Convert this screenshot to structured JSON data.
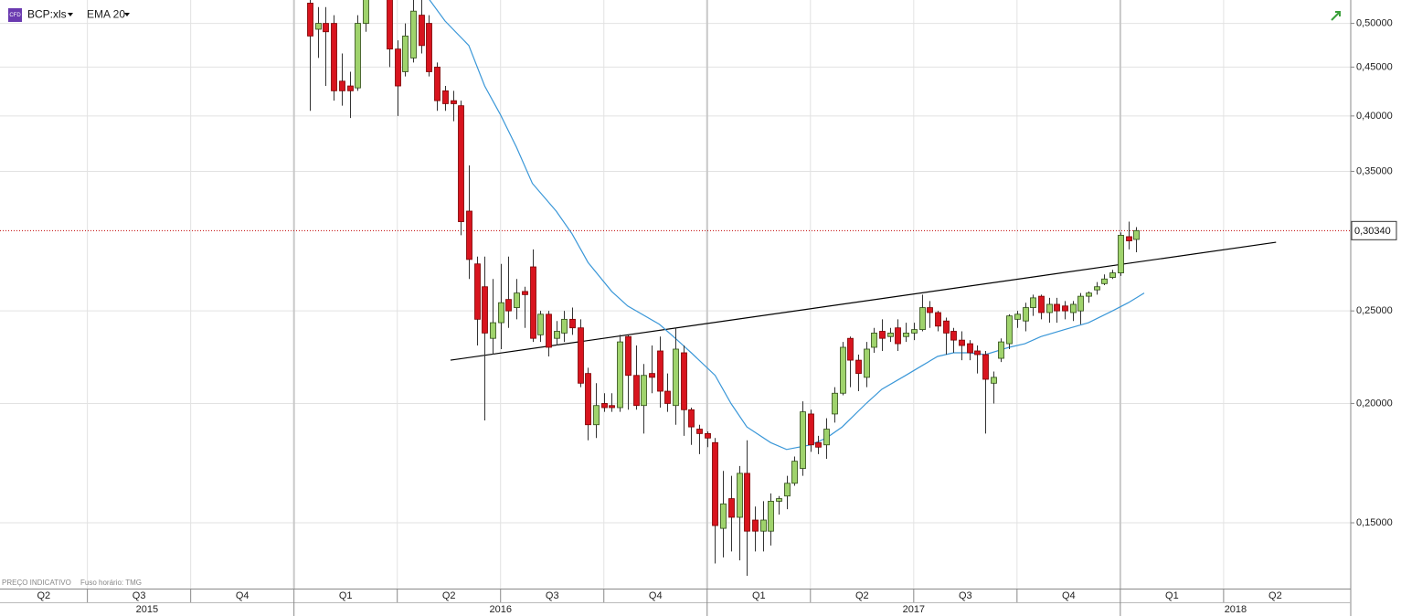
{
  "chart_data": {
    "type": "candlestick",
    "instrument_type": "CFD",
    "symbol": "BCP:xls",
    "footnote": "PREÇO INDICATIVO",
    "timezone_note": "Fuso horário: TMG",
    "log_scale": true,
    "grid": true,
    "up_color": "#9fd36c",
    "down_color": "#d8141e",
    "xlim": [
      0,
      170
    ],
    "ylim": [
      0.128,
      0.529
    ],
    "yticks": [
      {
        "value": 0.5,
        "label": "0,50000"
      },
      {
        "value": 0.45,
        "label": "0,45000"
      },
      {
        "value": 0.4,
        "label": "0,40000"
      },
      {
        "value": 0.35,
        "label": "0,35000"
      },
      {
        "value": 0.25,
        "label": "0,25000"
      },
      {
        "value": 0.2,
        "label": "0,20000"
      },
      {
        "value": 0.15,
        "label": "0,15000"
      }
    ],
    "quarters": [
      {
        "label": "Q2",
        "start": -2,
        "end": 11
      },
      {
        "label": "Q3",
        "start": 11,
        "end": 24
      },
      {
        "label": "Q4",
        "start": 24,
        "end": 37
      },
      {
        "label": "Q1",
        "start": 37,
        "end": 50
      },
      {
        "label": "Q2",
        "start": 50,
        "end": 63
      },
      {
        "label": "Q3",
        "start": 63,
        "end": 76
      },
      {
        "label": "Q4",
        "start": 76,
        "end": 89
      },
      {
        "label": "Q1",
        "start": 89,
        "end": 102
      },
      {
        "label": "Q2",
        "start": 102,
        "end": 115
      },
      {
        "label": "Q3",
        "start": 115,
        "end": 128
      },
      {
        "label": "Q4",
        "start": 128,
        "end": 141
      },
      {
        "label": "Q1",
        "start": 141,
        "end": 154
      },
      {
        "label": "Q2",
        "start": 154,
        "end": 167
      }
    ],
    "years": [
      {
        "label": "2015",
        "start": -15,
        "end": 37
      },
      {
        "label": "2016",
        "start": 37,
        "end": 89
      },
      {
        "label": "2017",
        "start": 89,
        "end": 141
      },
      {
        "label": "2018",
        "start": 141,
        "end": 193
      }
    ],
    "x": [
      39,
      40,
      41,
      42,
      43,
      44,
      45,
      46,
      49,
      50,
      51,
      52,
      53,
      54,
      55,
      56,
      57,
      58,
      59,
      60,
      61,
      62,
      63,
      64,
      65,
      66,
      67,
      68,
      69,
      70,
      71,
      72,
      73,
      74,
      75,
      76,
      77,
      78,
      79,
      80,
      81,
      82,
      83,
      84,
      85,
      86,
      87,
      88,
      89,
      90,
      91,
      92,
      93,
      94,
      95,
      96,
      97,
      98,
      99,
      100,
      101,
      102,
      103,
      104,
      105,
      106,
      107,
      108,
      109,
      110,
      111,
      112,
      113,
      114,
      115,
      116,
      117,
      118,
      119,
      120,
      121,
      122,
      123,
      124,
      125,
      126,
      127,
      128,
      129,
      130,
      131,
      132,
      133,
      134,
      135,
      136,
      137,
      138,
      139,
      140,
      141,
      142,
      143
    ],
    "open": [
      0.525,
      0.493,
      0.5,
      0.5,
      0.435,
      0.43,
      0.428,
      0.5,
      0.53,
      0.47,
      0.445,
      0.46,
      0.51,
      0.5,
      0.45,
      0.425,
      0.415,
      0.41,
      0.318,
      0.28,
      0.265,
      0.234,
      0.243,
      0.257,
      0.252,
      0.262,
      0.278,
      0.236,
      0.248,
      0.234,
      0.237,
      0.245,
      0.24,
      0.215,
      0.19,
      0.2,
      0.199,
      0.198,
      0.235,
      0.214,
      0.199,
      0.215,
      0.227,
      0.206,
      0.199,
      0.226,
      0.197,
      0.188,
      0.186,
      0.182,
      0.148,
      0.159,
      0.152,
      0.169,
      0.151,
      0.147,
      0.147,
      0.158,
      0.16,
      0.165,
      0.171,
      0.195,
      0.182,
      0.181,
      0.195,
      0.205,
      0.234,
      0.222,
      0.213,
      0.229,
      0.238,
      0.235,
      0.24,
      0.235,
      0.237,
      0.239,
      0.252,
      0.249,
      0.244,
      0.238,
      0.233,
      0.231,
      0.227,
      0.225,
      0.21,
      0.223,
      0.231,
      0.245,
      0.244,
      0.252,
      0.259,
      0.249,
      0.254,
      0.253,
      0.249,
      0.25,
      0.259,
      0.263,
      0.267,
      0.271,
      0.274,
      0.299,
      0.297
    ],
    "high": [
      0.53,
      0.52,
      0.52,
      0.51,
      0.465,
      0.445,
      0.51,
      0.53,
      0.53,
      0.48,
      0.5,
      0.53,
      0.53,
      0.51,
      0.455,
      0.43,
      0.425,
      0.415,
      0.355,
      0.285,
      0.285,
      0.27,
      0.28,
      0.285,
      0.27,
      0.265,
      0.29,
      0.25,
      0.25,
      0.244,
      0.25,
      0.252,
      0.245,
      0.218,
      0.21,
      0.205,
      0.205,
      0.236,
      0.236,
      0.23,
      0.22,
      0.23,
      0.235,
      0.215,
      0.24,
      0.23,
      0.198,
      0.19,
      0.187,
      0.184,
      0.17,
      0.168,
      0.172,
      0.183,
      0.156,
      0.158,
      0.161,
      0.16,
      0.168,
      0.176,
      0.201,
      0.197,
      0.185,
      0.193,
      0.208,
      0.232,
      0.235,
      0.225,
      0.232,
      0.24,
      0.245,
      0.24,
      0.245,
      0.243,
      0.243,
      0.26,
      0.256,
      0.25,
      0.246,
      0.24,
      0.238,
      0.233,
      0.23,
      0.227,
      0.216,
      0.234,
      0.248,
      0.25,
      0.255,
      0.26,
      0.26,
      0.258,
      0.258,
      0.256,
      0.256,
      0.261,
      0.262,
      0.268,
      0.273,
      0.276,
      0.302,
      0.31,
      0.306
    ],
    "low": [
      0.405,
      0.46,
      0.43,
      0.415,
      0.41,
      0.398,
      0.425,
      0.49,
      0.45,
      0.4,
      0.44,
      0.455,
      0.465,
      0.44,
      0.405,
      0.405,
      0.395,
      0.3,
      0.27,
      0.23,
      0.192,
      0.225,
      0.228,
      0.24,
      0.245,
      0.24,
      0.232,
      0.232,
      0.224,
      0.23,
      0.232,
      0.236,
      0.208,
      0.183,
      0.184,
      0.196,
      0.196,
      0.196,
      0.197,
      0.197,
      0.186,
      0.205,
      0.198,
      0.196,
      0.19,
      0.185,
      0.181,
      0.177,
      0.18,
      0.136,
      0.138,
      0.14,
      0.137,
      0.132,
      0.14,
      0.14,
      0.142,
      0.153,
      0.155,
      0.164,
      0.168,
      0.178,
      0.177,
      0.175,
      0.191,
      0.204,
      0.208,
      0.206,
      0.208,
      0.226,
      0.227,
      0.232,
      0.227,
      0.232,
      0.233,
      0.238,
      0.24,
      0.238,
      0.225,
      0.226,
      0.222,
      0.222,
      0.215,
      0.186,
      0.2,
      0.221,
      0.228,
      0.24,
      0.238,
      0.247,
      0.245,
      0.243,
      0.243,
      0.245,
      0.244,
      0.242,
      0.255,
      0.26,
      0.266,
      0.27,
      0.272,
      0.29,
      0.288
    ],
    "close": [
      0.485,
      0.5,
      0.49,
      0.425,
      0.425,
      0.425,
      0.5,
      0.53,
      0.47,
      0.43,
      0.485,
      0.515,
      0.474,
      0.445,
      0.415,
      0.412,
      0.412,
      0.31,
      0.283,
      0.245,
      0.237,
      0.243,
      0.255,
      0.25,
      0.261,
      0.26,
      0.234,
      0.248,
      0.229,
      0.238,
      0.245,
      0.24,
      0.21,
      0.19,
      0.199,
      0.198,
      0.198,
      0.232,
      0.214,
      0.199,
      0.214,
      0.213,
      0.206,
      0.2,
      0.228,
      0.197,
      0.189,
      0.186,
      0.184,
      0.149,
      0.157,
      0.152,
      0.169,
      0.147,
      0.147,
      0.151,
      0.158,
      0.159,
      0.165,
      0.174,
      0.196,
      0.181,
      0.18,
      0.188,
      0.205,
      0.229,
      0.222,
      0.215,
      0.228,
      0.237,
      0.234,
      0.237,
      0.231,
      0.237,
      0.239,
      0.252,
      0.249,
      0.241,
      0.237,
      0.233,
      0.23,
      0.226,
      0.225,
      0.212,
      0.213,
      0.232,
      0.247,
      0.248,
      0.252,
      0.258,
      0.249,
      0.254,
      0.25,
      0.25,
      0.254,
      0.259,
      0.261,
      0.265,
      0.27,
      0.274,
      0.3,
      0.296,
      0.3034
    ],
    "overlays": [
      {
        "name": "EMA 20",
        "color": "#3a97d8",
        "x": [
          54,
          56,
          59,
          61,
          63,
          65,
          67,
          70,
          72,
          74,
          77,
          79,
          83,
          85,
          87,
          90,
          92,
          94,
          97,
          99,
          102,
          104,
          106,
          109,
          111,
          114,
          116,
          118,
          120,
          122,
          124,
          127,
          129,
          131,
          134,
          137,
          140,
          142,
          144
        ],
        "values": [
          0.53,
          0.503,
          0.474,
          0.43,
          0.401,
          0.371,
          0.34,
          0.318,
          0.301,
          0.281,
          0.262,
          0.253,
          0.242,
          0.234,
          0.226,
          0.214,
          0.2,
          0.189,
          0.182,
          0.179,
          0.181,
          0.184,
          0.189,
          0.2,
          0.207,
          0.214,
          0.219,
          0.224,
          0.226,
          0.226,
          0.225,
          0.229,
          0.231,
          0.235,
          0.239,
          0.243,
          0.25,
          0.255,
          0.261
        ]
      }
    ],
    "trendline": {
      "color": "#000000",
      "x": [
        56.7,
        160.6
      ],
      "values": [
        0.222,
        0.295
      ]
    },
    "price_line": {
      "value": 0.3034,
      "label": "0,30340",
      "color": "#c00000"
    }
  }
}
